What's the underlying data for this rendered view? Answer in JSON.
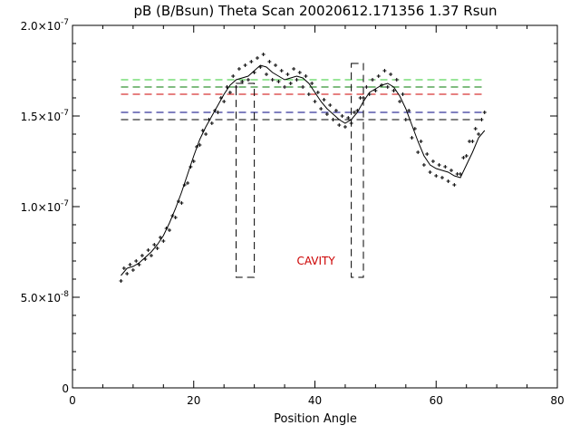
{
  "chart_data": {
    "type": "scatter",
    "title": "pB (B/Bsun) Theta Scan 20020612.171356 1.37 Rsun",
    "xlabel": "Position Angle",
    "ylabel": "",
    "xlim": [
      0,
      80
    ],
    "ylim": [
      0,
      2e-07
    ],
    "x_ticks": [
      {
        "value": 0,
        "label": "0"
      },
      {
        "value": 20,
        "label": "20"
      },
      {
        "value": 40,
        "label": "40"
      },
      {
        "value": 60,
        "label": "60"
      },
      {
        "value": 80,
        "label": "80"
      }
    ],
    "y_ticks": [
      {
        "value": 0,
        "label": "0"
      },
      {
        "value": 5e-08,
        "label": "5.0×10",
        "exp": "-8"
      },
      {
        "value": 1e-07,
        "label": "1.0×10",
        "exp": "-7"
      },
      {
        "value": 1.5e-07,
        "label": "1.5×10",
        "exp": "-7"
      },
      {
        "value": 2e-07,
        "label": "2.0×10",
        "exp": "-7"
      }
    ],
    "grid": false,
    "annotation": {
      "text": "CAVITY",
      "x": 37,
      "y": 6.8e-08,
      "color": "#cc0000"
    },
    "series": [
      {
        "kind": "line",
        "color": "#000000",
        "x": [
          8,
          9,
          10,
          11,
          12,
          13,
          14,
          15,
          16,
          17,
          18,
          19,
          20,
          21,
          22,
          23,
          24,
          25,
          26,
          27,
          28,
          29,
          30,
          31,
          32,
          33,
          34,
          35,
          36,
          37,
          38,
          39,
          40,
          41,
          42,
          43,
          44,
          45,
          46,
          47,
          48,
          49,
          50,
          51,
          52,
          53,
          54,
          55,
          56,
          57,
          58,
          59,
          60,
          61,
          62,
          63,
          64,
          65,
          66,
          67,
          68
        ],
        "y": [
          6.2e-08,
          6.6e-08,
          6.7e-08,
          6.9e-08,
          7.2e-08,
          7.5e-08,
          7.9e-08,
          8.4e-08,
          9.1e-08,
          9.9e-08,
          1.08e-07,
          1.18e-07,
          1.28e-07,
          1.37e-07,
          1.44e-07,
          1.5e-07,
          1.56e-07,
          1.62e-07,
          1.67e-07,
          1.7e-07,
          1.71e-07,
          1.72e-07,
          1.75e-07,
          1.78e-07,
          1.77e-07,
          1.74e-07,
          1.72e-07,
          1.7e-07,
          1.71e-07,
          1.72e-07,
          1.71e-07,
          1.68e-07,
          1.63e-07,
          1.58e-07,
          1.54e-07,
          1.51e-07,
          1.48e-07,
          1.46e-07,
          1.48e-07,
          1.52e-07,
          1.58e-07,
          1.63e-07,
          1.65e-07,
          1.67e-07,
          1.68e-07,
          1.66e-07,
          1.61e-07,
          1.54e-07,
          1.45e-07,
          1.36e-07,
          1.28e-07,
          1.23e-07,
          1.21e-07,
          1.2e-07,
          1.19e-07,
          1.17e-07,
          1.16e-07,
          1.23e-07,
          1.3e-07,
          1.38e-07,
          1.42e-07
        ]
      },
      {
        "kind": "points",
        "marker": "+",
        "color": "#000000",
        "x": [
          8,
          8.5,
          9,
          9.5,
          10,
          10.5,
          11,
          11.5,
          12,
          12.5,
          13,
          13.5,
          14,
          14.5,
          15,
          15.5,
          16,
          16.5,
          17,
          17.5,
          18,
          18.5,
          19,
          19.5,
          20,
          20.5,
          21,
          21.5,
          22,
          22.5,
          23,
          23.5,
          24,
          24.5,
          25,
          25.5,
          26,
          26.5,
          27,
          27.5,
          28,
          28.5,
          29,
          29.5,
          30,
          30.5,
          31,
          31.5,
          32,
          32.5,
          33,
          33.5,
          34,
          34.5,
          35,
          35.5,
          36,
          36.5,
          37,
          37.5,
          38,
          38.5,
          39,
          39.5,
          40,
          40.5,
          41,
          41.5,
          42,
          42.5,
          43,
          43.5,
          44,
          44.5,
          45,
          45.5,
          46,
          46.5,
          47,
          47.5,
          48,
          48.5,
          49,
          49.5,
          50,
          50.5,
          51,
          51.5,
          52,
          52.5,
          53,
          53.5,
          54,
          54.5,
          55,
          55.5,
          56,
          56.5,
          57,
          57.5,
          58,
          58.5,
          59,
          59.5,
          60,
          60.5,
          61,
          61.5,
          62,
          62.5,
          63,
          63.5,
          64,
          64.5,
          65,
          65.5,
          66,
          66.5,
          67,
          67.5,
          68
        ],
        "y": [
          5.9e-08,
          6.6e-08,
          6.3e-08,
          6.8e-08,
          6.5e-08,
          7e-08,
          6.8e-08,
          7.3e-08,
          7.1e-08,
          7.6e-08,
          7.3e-08,
          7.9e-08,
          7.7e-08,
          8.3e-08,
          8.1e-08,
          8.8e-08,
          8.7e-08,
          9.5e-08,
          9.4e-08,
          1.03e-07,
          1.02e-07,
          1.12e-07,
          1.13e-07,
          1.22e-07,
          1.25e-07,
          1.33e-07,
          1.34e-07,
          1.42e-07,
          1.4e-07,
          1.48e-07,
          1.46e-07,
          1.53e-07,
          1.52e-07,
          1.6e-07,
          1.58e-07,
          1.66e-07,
          1.63e-07,
          1.72e-07,
          1.66e-07,
          1.76e-07,
          1.69e-07,
          1.78e-07,
          1.7e-07,
          1.8e-07,
          1.74e-07,
          1.82e-07,
          1.77e-07,
          1.84e-07,
          1.73e-07,
          1.8e-07,
          1.7e-07,
          1.78e-07,
          1.69e-07,
          1.75e-07,
          1.66e-07,
          1.73e-07,
          1.68e-07,
          1.76e-07,
          1.7e-07,
          1.74e-07,
          1.66e-07,
          1.72e-07,
          1.62e-07,
          1.68e-07,
          1.58e-07,
          1.63e-07,
          1.54e-07,
          1.59e-07,
          1.51e-07,
          1.56e-07,
          1.48e-07,
          1.53e-07,
          1.45e-07,
          1.5e-07,
          1.44e-07,
          1.49e-07,
          1.46e-07,
          1.52e-07,
          1.53e-07,
          1.6e-07,
          1.6e-07,
          1.66e-07,
          1.62e-07,
          1.7e-07,
          1.64e-07,
          1.72e-07,
          1.67e-07,
          1.75e-07,
          1.66e-07,
          1.73e-07,
          1.64e-07,
          1.7e-07,
          1.58e-07,
          1.62e-07,
          1.48e-07,
          1.53e-07,
          1.38e-07,
          1.43e-07,
          1.3e-07,
          1.36e-07,
          1.23e-07,
          1.29e-07,
          1.19e-07,
          1.25e-07,
          1.17e-07,
          1.23e-07,
          1.16e-07,
          1.22e-07,
          1.14e-07,
          1.2e-07,
          1.12e-07,
          1.18e-07,
          1.18e-07,
          1.27e-07,
          1.28e-07,
          1.36e-07,
          1.36e-07,
          1.43e-07,
          1.4e-07,
          1.48e-07,
          1.52e-07
        ]
      }
    ],
    "hlines": [
      {
        "y": 1.7e-07,
        "color": "#33cc33",
        "x0": 8,
        "x1": 68
      },
      {
        "y": 1.66e-07,
        "color": "#ff8800",
        "x0": 8,
        "x1": 68
      },
      {
        "y": 1.66e-07,
        "color": "#007700",
        "x0": 8,
        "x1": 68
      },
      {
        "y": 1.62e-07,
        "color": "#cc0000",
        "x0": 8,
        "x1": 68
      },
      {
        "y": 1.52e-07,
        "color": "#000080",
        "x0": 8,
        "x1": 68
      },
      {
        "y": 1.48e-07,
        "color": "#000000",
        "x0": 8,
        "x1": 68
      }
    ],
    "boxes": [
      {
        "x0": 27,
        "x1": 30,
        "y0": 6.1e-08,
        "y1": 1.68e-07,
        "color": "#000000"
      },
      {
        "x0": 46,
        "x1": 48,
        "y0": 6.1e-08,
        "y1": 1.79e-07,
        "color": "#000000"
      }
    ]
  }
}
